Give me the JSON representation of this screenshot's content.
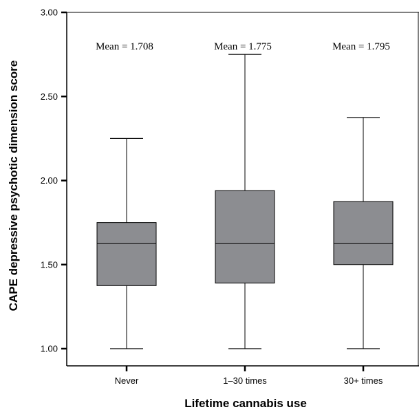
{
  "chart_data": {
    "type": "boxplot",
    "xlabel": "Lifetime cannabis use",
    "ylabel": "CAPE depressive psychotic dimension score",
    "ylim": [
      1.0,
      3.0
    ],
    "yticks": [
      "1.00",
      "1.50",
      "2.00",
      "2.50",
      "3.00"
    ],
    "categories": [
      "Never",
      "1–30 times",
      "30+ times"
    ],
    "boxes": [
      {
        "category": "Never",
        "min": 1.0,
        "q1": 1.375,
        "median": 1.625,
        "q3": 1.75,
        "max": 2.25,
        "mean_label": "Mean = 1.708"
      },
      {
        "category": "1–30 times",
        "min": 1.0,
        "q1": 1.39,
        "median": 1.625,
        "q3": 1.94,
        "max": 2.75,
        "mean_label": "Mean = 1.775"
      },
      {
        "category": "30+ times",
        "min": 1.0,
        "q1": 1.5,
        "median": 1.625,
        "q3": 1.875,
        "max": 2.375,
        "mean_label": "Mean = 1.795"
      }
    ],
    "box_color": "#8c8d91",
    "grid": false
  }
}
